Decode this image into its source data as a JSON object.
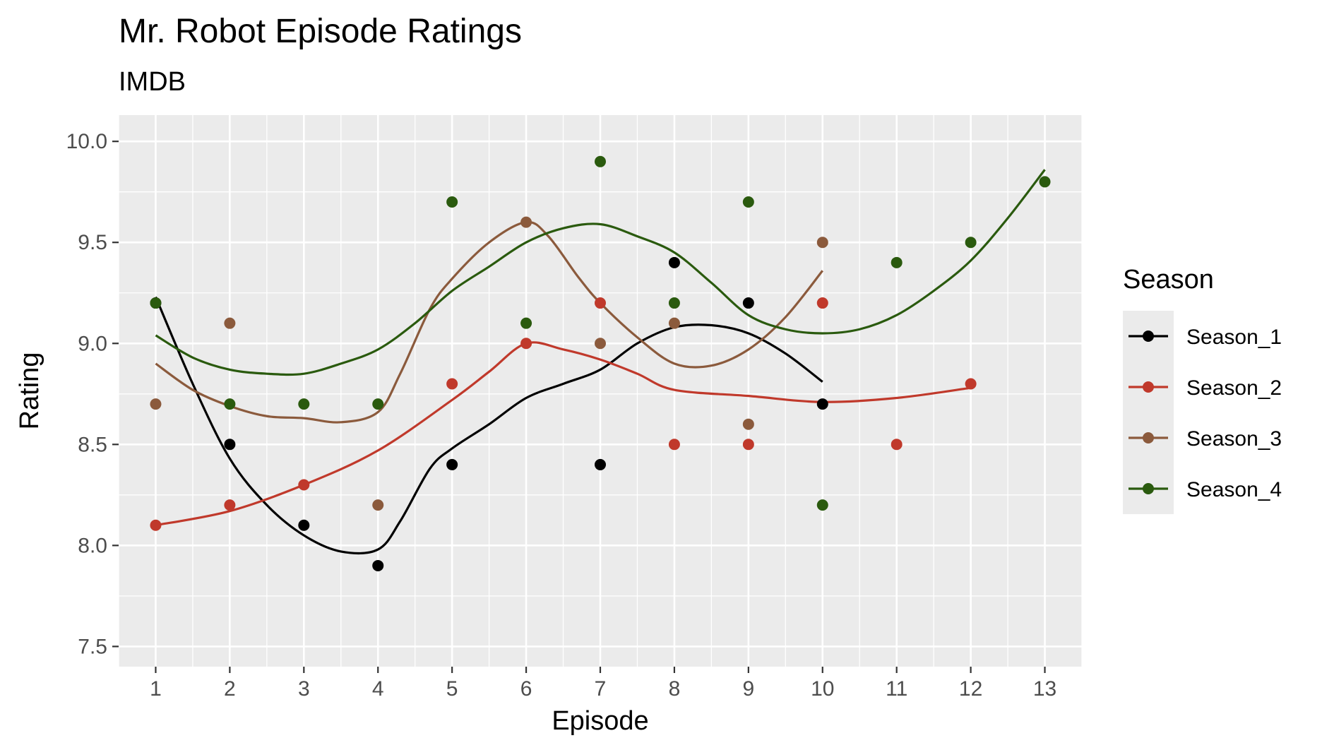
{
  "chart_data": {
    "type": "scatter",
    "title": "Mr. Robot Episode Ratings",
    "subtitle": "IMDB",
    "xlabel": "Episode",
    "ylabel": "Rating",
    "xlim": [
      0.5,
      13.5
    ],
    "ylim": [
      7.4,
      10.13
    ],
    "x_ticks": [
      1,
      2,
      3,
      4,
      5,
      6,
      7,
      8,
      9,
      10,
      11,
      12,
      13
    ],
    "x_tick_labels": [
      "1",
      "2",
      "3",
      "4",
      "5",
      "6",
      "7",
      "8",
      "9",
      "10",
      "11",
      "12",
      "13"
    ],
    "y_ticks": [
      7.5,
      8.0,
      8.5,
      9.0,
      9.5,
      10.0
    ],
    "y_tick_labels": [
      "7.5",
      "8.0",
      "8.5",
      "9.0",
      "9.5",
      "10.0"
    ],
    "grid": true,
    "panel_background": "#ebebeb",
    "legend": {
      "title": "Season",
      "position": "right"
    },
    "series": [
      {
        "name": "Season_1",
        "color": "#000000",
        "x": [
          1,
          2,
          3,
          4,
          5,
          7,
          8,
          9,
          10
        ],
        "y": [
          9.2,
          8.5,
          8.1,
          7.9,
          8.4,
          8.4,
          9.4,
          9.2,
          8.7
        ],
        "smooth": [
          [
            1,
            9.23
          ],
          [
            1.5,
            8.8
          ],
          [
            2,
            8.43
          ],
          [
            2.5,
            8.2
          ],
          [
            3,
            8.05
          ],
          [
            3.5,
            7.97
          ],
          [
            4,
            7.98
          ],
          [
            4.3,
            8.12
          ],
          [
            4.7,
            8.38
          ],
          [
            5,
            8.48
          ],
          [
            5.5,
            8.6
          ],
          [
            6,
            8.73
          ],
          [
            6.5,
            8.8
          ],
          [
            7,
            8.87
          ],
          [
            7.5,
            9.0
          ],
          [
            8,
            9.08
          ],
          [
            8.5,
            9.09
          ],
          [
            9,
            9.05
          ],
          [
            9.5,
            8.95
          ],
          [
            10,
            8.81
          ]
        ]
      },
      {
        "name": "Season_2",
        "color": "#c0392b",
        "x": [
          1,
          2,
          3,
          5,
          6,
          7,
          8,
          9,
          10,
          11,
          12
        ],
        "y": [
          8.1,
          8.2,
          8.3,
          8.8,
          9.0,
          9.2,
          8.5,
          8.5,
          9.2,
          8.5,
          8.8
        ],
        "smooth": [
          [
            1,
            8.1
          ],
          [
            2,
            8.17
          ],
          [
            3,
            8.3
          ],
          [
            4,
            8.47
          ],
          [
            5,
            8.72
          ],
          [
            5.5,
            8.86
          ],
          [
            6,
            9.0
          ],
          [
            6.5,
            8.97
          ],
          [
            7,
            8.92
          ],
          [
            7.5,
            8.85
          ],
          [
            8,
            8.77
          ],
          [
            9,
            8.74
          ],
          [
            10,
            8.71
          ],
          [
            11,
            8.73
          ],
          [
            12,
            8.78
          ]
        ]
      },
      {
        "name": "Season_3",
        "color": "#8b5a3c",
        "x": [
          1,
          2,
          4,
          6,
          7,
          8,
          9,
          10
        ],
        "y": [
          8.7,
          9.1,
          8.2,
          9.6,
          9.0,
          9.1,
          8.6,
          9.5
        ],
        "smooth": [
          [
            1,
            8.9
          ],
          [
            1.5,
            8.77
          ],
          [
            2,
            8.69
          ],
          [
            2.5,
            8.64
          ],
          [
            3,
            8.63
          ],
          [
            3.5,
            8.61
          ],
          [
            4,
            8.66
          ],
          [
            4.3,
            8.85
          ],
          [
            4.7,
            9.17
          ],
          [
            5,
            9.32
          ],
          [
            5.5,
            9.5
          ],
          [
            6,
            9.6
          ],
          [
            6.3,
            9.53
          ],
          [
            6.7,
            9.33
          ],
          [
            7,
            9.2
          ],
          [
            7.5,
            9.03
          ],
          [
            8,
            8.9
          ],
          [
            8.5,
            8.89
          ],
          [
            9,
            8.97
          ],
          [
            9.5,
            9.13
          ],
          [
            10,
            9.36
          ]
        ]
      },
      {
        "name": "Season_4",
        "color": "#2a5a0e",
        "x": [
          1,
          2,
          3,
          4,
          5,
          6,
          7,
          8,
          9,
          10,
          11,
          12,
          13
        ],
        "y": [
          9.2,
          8.7,
          8.7,
          8.7,
          9.7,
          9.1,
          9.9,
          9.2,
          9.7,
          8.2,
          9.4,
          9.5,
          9.8
        ],
        "smooth": [
          [
            1,
            9.04
          ],
          [
            1.5,
            8.93
          ],
          [
            2,
            8.87
          ],
          [
            2.5,
            8.85
          ],
          [
            3,
            8.85
          ],
          [
            3.5,
            8.9
          ],
          [
            4,
            8.97
          ],
          [
            4.5,
            9.1
          ],
          [
            5,
            9.26
          ],
          [
            5.5,
            9.38
          ],
          [
            6,
            9.5
          ],
          [
            6.5,
            9.57
          ],
          [
            7,
            9.59
          ],
          [
            7.5,
            9.53
          ],
          [
            8,
            9.45
          ],
          [
            8.5,
            9.3
          ],
          [
            9,
            9.14
          ],
          [
            9.5,
            9.07
          ],
          [
            10,
            9.05
          ],
          [
            10.5,
            9.07
          ],
          [
            11,
            9.14
          ],
          [
            11.5,
            9.26
          ],
          [
            12,
            9.41
          ],
          [
            12.5,
            9.62
          ],
          [
            13,
            9.86
          ]
        ]
      }
    ]
  }
}
